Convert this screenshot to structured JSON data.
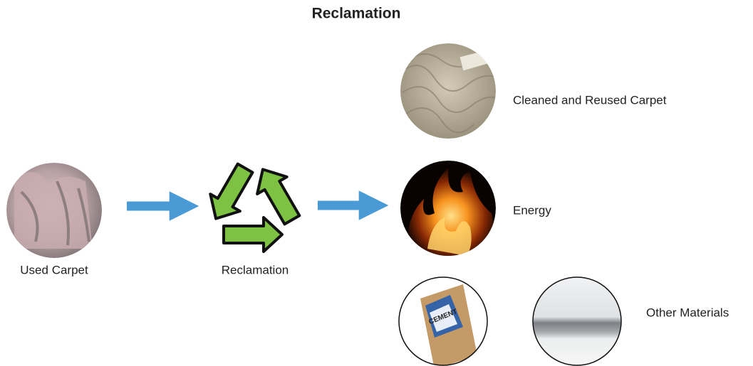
{
  "title": "Reclamation",
  "nodes": [
    {
      "label": "Used Carpet"
    },
    {
      "label": "Reclamation"
    },
    {
      "label": "Cleaned and Reused Carpet"
    },
    {
      "label": "Energy"
    },
    {
      "label": "Other Materials"
    }
  ],
  "bag_text": "CEMENT"
}
